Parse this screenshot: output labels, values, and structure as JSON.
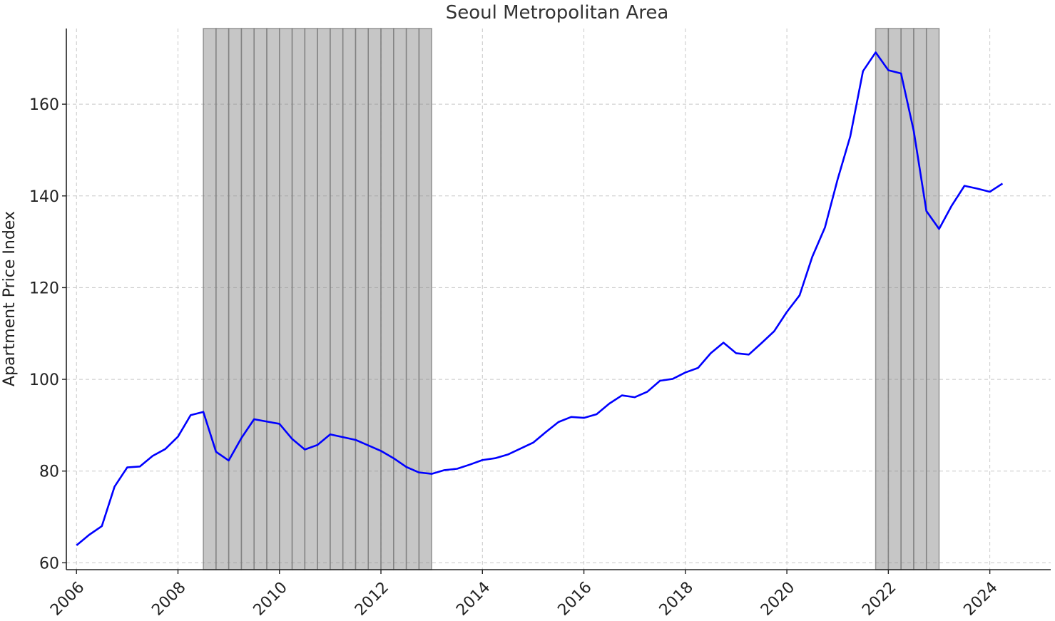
{
  "chart_data": {
    "type": "line",
    "title": "Seoul Metropolitan Area",
    "xlabel": "",
    "ylabel": "Apartment Price Index",
    "xlim": [
      2005.8,
      2025.2
    ],
    "ylim": [
      58.5,
      176.5
    ],
    "x_ticks": [
      "2006",
      "2008",
      "2010",
      "2012",
      "2014",
      "2016",
      "2018",
      "2020",
      "2022",
      "2024"
    ],
    "y_ticks": [
      "60",
      "80",
      "100",
      "120",
      "140",
      "160"
    ],
    "grid": true,
    "line_color": "#0000ff",
    "shade_color": "#808080",
    "shaded_periods": [
      {
        "start": 2008.5,
        "end": 2013.0
      },
      {
        "start": 2021.75,
        "end": 2023.0
      }
    ],
    "series": [
      {
        "x": [
          2006.0,
          2006.25,
          2006.5,
          2006.75,
          2007.0,
          2007.25,
          2007.5,
          2007.75,
          2008.0,
          2008.25,
          2008.5,
          2008.75,
          2009.0,
          2009.25,
          2009.5,
          2009.75,
          2010.0,
          2010.25,
          2010.5,
          2010.75,
          2011.0,
          2011.25,
          2011.5,
          2011.75,
          2012.0,
          2012.25,
          2012.5,
          2012.75,
          2013.0,
          2013.25,
          2013.5,
          2013.75,
          2014.0,
          2014.25,
          2014.5,
          2014.75,
          2015.0,
          2015.25,
          2015.5,
          2015.75,
          2016.0,
          2016.25,
          2016.5,
          2016.75,
          2017.0,
          2017.25,
          2017.5,
          2017.75,
          2018.0,
          2018.25,
          2018.5,
          2018.75,
          2019.0,
          2019.25,
          2019.5,
          2019.75,
          2020.0,
          2020.25,
          2020.5,
          2020.75,
          2021.0,
          2021.25,
          2021.5,
          2021.75,
          2022.0,
          2022.25,
          2022.5,
          2022.75,
          2023.0,
          2023.25,
          2023.5,
          2023.75,
          2024.0,
          2024.25
        ],
        "values": [
          63.8,
          66.1,
          68.0,
          76.6,
          80.8,
          81.0,
          83.3,
          84.8,
          87.5,
          92.2,
          92.9,
          84.2,
          82.3,
          87.2,
          91.3,
          90.8,
          90.3,
          87.0,
          84.7,
          85.7,
          88.0,
          87.4,
          86.8,
          85.6,
          84.4,
          82.8,
          80.9,
          79.7,
          79.4,
          80.2,
          80.5,
          81.4,
          82.4,
          82.8,
          83.6,
          84.9,
          86.2,
          88.5,
          90.7,
          91.8,
          91.6,
          92.4,
          94.7,
          96.5,
          96.1,
          97.3,
          99.7,
          100.1,
          101.5,
          102.5,
          105.7,
          108.0,
          105.7,
          105.4,
          107.9,
          110.5,
          114.7,
          118.3,
          126.7,
          133.1,
          143.6,
          153.0,
          167.2,
          171.3,
          167.4,
          166.7,
          154.2,
          136.7,
          132.8,
          137.9,
          142.2,
          141.6,
          140.9,
          142.7
        ]
      }
    ]
  }
}
